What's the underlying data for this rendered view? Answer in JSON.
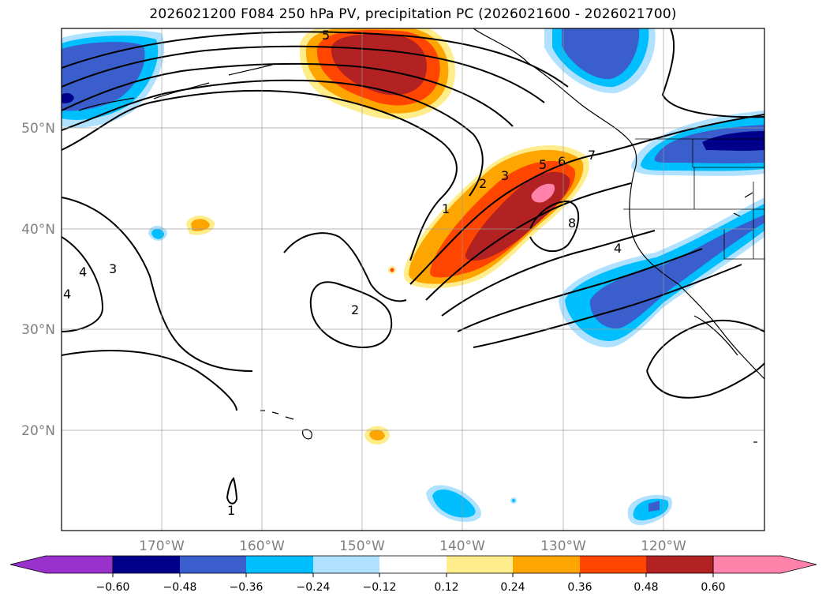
{
  "title": "2026021200 F084 250 hPa PV, precipitation PC (2026021600 - 2026021700)",
  "map": {
    "lon_range": [
      -180,
      -110
    ],
    "lat_range": [
      10,
      60
    ],
    "lat_gridlines": [
      20,
      30,
      40,
      50
    ],
    "lon_gridlines": [
      -170,
      -160,
      -150,
      -140,
      -130,
      -120
    ],
    "lat_labels": [
      "20°N",
      "30°N",
      "40°N",
      "50°N"
    ],
    "lon_labels": [
      "170°W",
      "160°W",
      "150°W",
      "140°W",
      "130°W",
      "120°W"
    ],
    "pv_contour_labels": [
      "1",
      "2",
      "3",
      "4",
      "5",
      "6",
      "7",
      "8",
      "2",
      "3",
      "4",
      "1",
      "4",
      "5"
    ]
  },
  "colorbar": {
    "ticks": [
      "−0.60",
      "−0.48",
      "−0.36",
      "−0.24",
      "−0.12",
      "0.12",
      "0.24",
      "0.36",
      "0.48",
      "0.60"
    ],
    "colors": [
      "#9932cc",
      "#00008b",
      "#3a5fcd",
      "#00bfff",
      "#b0e2ff",
      "#ffffff",
      "#ffec8b",
      "#ffa500",
      "#ff4500",
      "#b22222",
      "#ff82ab",
      "#ffc0cb"
    ]
  }
}
